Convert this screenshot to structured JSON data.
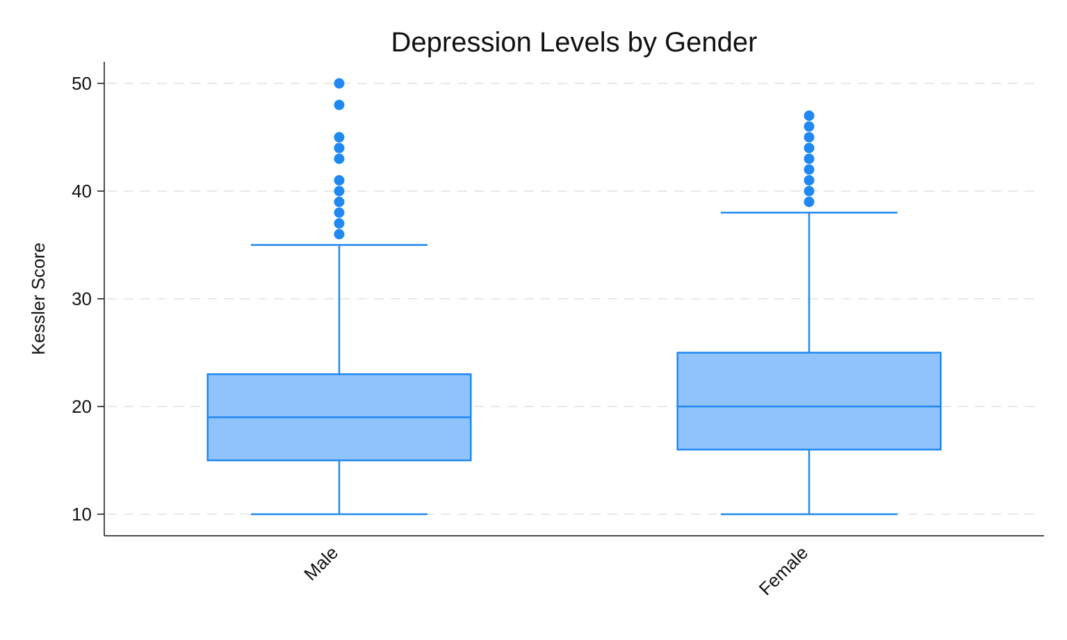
{
  "chart_data": {
    "type": "box",
    "title": "Depression Levels by Gender",
    "xlabel": "",
    "ylabel": "Kessler Score",
    "ylim": [
      8,
      52
    ],
    "yticks": [
      10,
      20,
      30,
      40,
      50
    ],
    "grid": true,
    "legend": "none",
    "colors": {
      "fill": "#90c2fb",
      "stroke": "#1f88f2",
      "outlier": "#1f88f2",
      "grid": "#e8e8e8",
      "axis": "#111111"
    },
    "categories": [
      "Male",
      "Female"
    ],
    "boxes": [
      {
        "category": "Male",
        "whisker_low": 10,
        "q1": 15,
        "median": 19,
        "q3": 23,
        "whisker_high": 35,
        "outliers": [
          36,
          37,
          38,
          39,
          40,
          41,
          43,
          44,
          45,
          48,
          50
        ]
      },
      {
        "category": "Female",
        "whisker_low": 10,
        "q1": 16,
        "median": 20,
        "q3": 25,
        "whisker_high": 38,
        "outliers": [
          39,
          40,
          41,
          42,
          43,
          44,
          45,
          46,
          47
        ]
      }
    ]
  }
}
